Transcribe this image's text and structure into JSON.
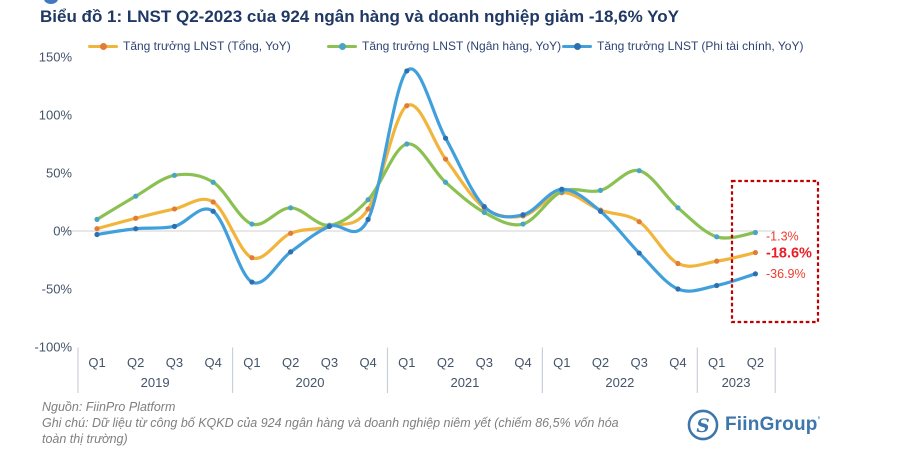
{
  "title": "Biểu đồ 1: LNST Q2-2023 của 924 ngân hàng và doanh nghiệp giảm -18,6% YoY",
  "legend": [
    {
      "label": "Tăng trưởng LNST (Tổng, YoY)",
      "color": "#F2B53C",
      "marker": "#E07C39"
    },
    {
      "label": "Tăng trưởng LNST (Ngân hàng, YoY)",
      "color": "#8BC152",
      "marker": "#49A5C6"
    },
    {
      "label": "Tăng trưởng LNST (Phi tài chính, YoY)",
      "color": "#41A0DC",
      "marker": "#2D6FAF"
    }
  ],
  "chart_data": {
    "type": "line",
    "quarters": [
      "Q1",
      "Q2",
      "Q3",
      "Q4",
      "Q1",
      "Q2",
      "Q3",
      "Q4",
      "Q1",
      "Q2",
      "Q3",
      "Q4",
      "Q1",
      "Q2",
      "Q3",
      "Q4",
      "Q1",
      "Q2"
    ],
    "years": [
      {
        "label": "2019",
        "quarters": 4
      },
      {
        "label": "2020",
        "quarters": 4
      },
      {
        "label": "2021",
        "quarters": 4
      },
      {
        "label": "2022",
        "quarters": 4
      },
      {
        "label": "2023",
        "quarters": 2
      }
    ],
    "yticks": [
      {
        "label": "150%",
        "value": 150
      },
      {
        "label": "100%",
        "value": 100
      },
      {
        "label": "50%",
        "value": 50
      },
      {
        "label": "0%",
        "value": 0
      },
      {
        "label": "-50%",
        "value": -50
      },
      {
        "label": "-100%",
        "value": -100
      }
    ],
    "ylim": [
      -100,
      150
    ],
    "series": [
      {
        "name": "Tăng trưởng LNST (Tổng, YoY)",
        "color": "#F2B53C",
        "marker": "#E07C39",
        "values": [
          2,
          11,
          19,
          25,
          -23,
          -2,
          4,
          19,
          108,
          62,
          20,
          13,
          33,
          18,
          8,
          -28,
          -26,
          -18.6
        ]
      },
      {
        "name": "Tăng trưởng LNST (Ngân hàng, YoY)",
        "color": "#8BC152",
        "marker": "#49A5C6",
        "values": [
          10,
          30,
          48,
          42,
          6,
          20,
          5,
          27,
          75,
          42,
          16,
          6,
          34,
          35,
          52,
          20,
          -5,
          -1.3
        ]
      },
      {
        "name": "Tăng trưởng LNST (Phi tài chính, YoY)",
        "color": "#41A0DC",
        "marker": "#2D6FAF",
        "values": [
          -3,
          2,
          4,
          17,
          -44,
          -18,
          4,
          10,
          138,
          80,
          21,
          14,
          36,
          17,
          -19,
          -50,
          -47,
          -36.9
        ]
      }
    ],
    "annotations": [
      {
        "text": "-1.3%",
        "value": -1.3,
        "bold": false,
        "color": "#EF3B2F"
      },
      {
        "text": "-18.6%",
        "value": -18.6,
        "bold": true,
        "color": "#EC1C24"
      },
      {
        "text": "-36.9%",
        "value": -36.9,
        "bold": false,
        "color": "#EF3B2F"
      }
    ],
    "highlight_box_color": "#C00000"
  },
  "footer": {
    "source": "Nguồn: FiinPro Platform",
    "note": "Ghi chú: Dữ liệu từ công bố KQKD của 924 ngân hàng và doanh nghiệp niêm yết (chiếm 86,5% vốn hóa toàn thị trường)"
  },
  "logo": {
    "text": "FiinGroup",
    "mark": "’"
  }
}
